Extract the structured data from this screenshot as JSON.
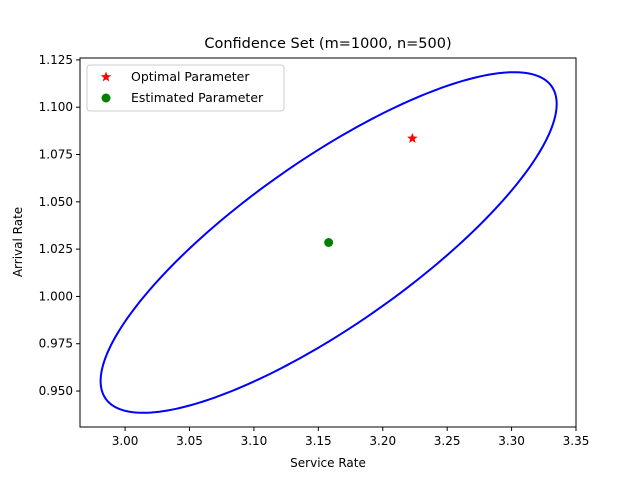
{
  "chart_data": {
    "type": "scatter",
    "title": "Confidence Set (m=1000, n=500)",
    "xlabel": "Service Rate",
    "ylabel": "Arrival Rate",
    "xlim": [
      2.965,
      3.35
    ],
    "ylim": [
      0.931,
      1.126
    ],
    "xticks": [
      "3.00",
      "3.05",
      "3.10",
      "3.15",
      "3.20",
      "3.25",
      "3.30",
      "3.35"
    ],
    "yticks": [
      "0.950",
      "0.975",
      "1.000",
      "1.025",
      "1.050",
      "1.075",
      "1.100",
      "1.125"
    ],
    "grid": false,
    "legend_position": "top-left",
    "series": [
      {
        "name": "Optimal Parameter",
        "marker": "star",
        "color": "#ff0000",
        "points": [
          [
            3.223,
            1.0835
          ]
        ]
      },
      {
        "name": "Estimated Parameter",
        "marker": "circle",
        "color": "#008000",
        "points": [
          [
            3.158,
            1.0285
          ]
        ]
      }
    ],
    "confidence_ellipse": {
      "color": "#0000ff",
      "center": [
        3.158,
        1.0285
      ],
      "x_extent": [
        2.981,
        3.335
      ],
      "y_extent": [
        0.938,
        1.118
      ]
    }
  }
}
